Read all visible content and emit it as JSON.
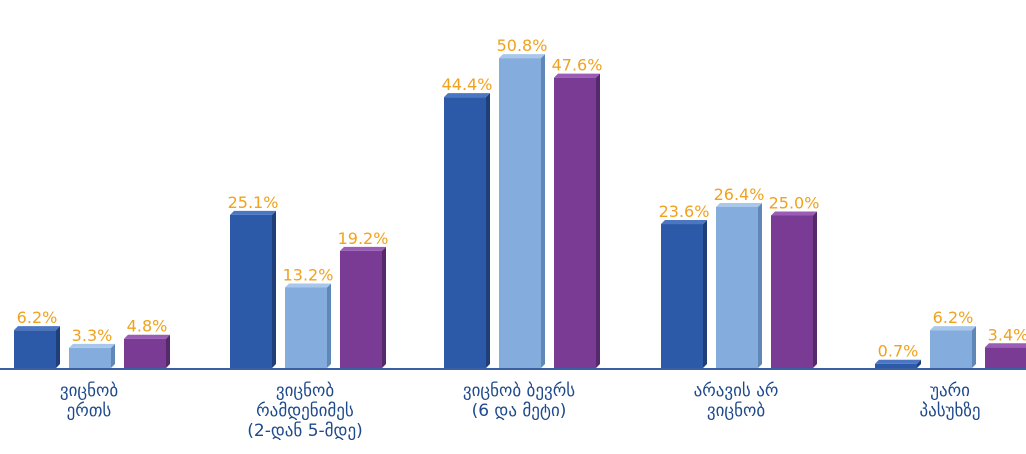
{
  "chart_data": {
    "type": "bar",
    "categories": [
      [
        "ვიცნობ",
        "ერთს"
      ],
      [
        "ვიცნობ",
        "რამდენიმეს",
        "(2-დან 5-მდე)"
      ],
      [
        "ვიცნობ ბევრს",
        "(6  და მეტი)"
      ],
      [
        "არავის არ",
        "ვიცნობ"
      ],
      [
        "უარი",
        "პასუხზე"
      ]
    ],
    "series": [
      {
        "values": [
          6.2,
          25.1,
          44.4,
          23.6,
          0.7
        ],
        "labels": [
          "6.2%",
          "25.1%",
          "44.4%",
          "23.6%",
          "0.7%"
        ]
      },
      {
        "values": [
          3.3,
          13.2,
          50.8,
          26.4,
          6.2
        ],
        "labels": [
          "3.3%",
          "13.2%",
          "50.8%",
          "26.4%",
          "6.2%"
        ]
      },
      {
        "values": [
          4.8,
          19.2,
          47.6,
          25.0,
          3.4
        ],
        "labels": [
          "4.8%",
          "19.2%",
          "47.6%",
          "25.0%",
          "3.4%"
        ]
      }
    ],
    "ylim": [
      0,
      55
    ],
    "grid": false,
    "legend": "none",
    "colors": {
      "series": [
        "#2d5aa8",
        "#84acdc",
        "#7a3b94"
      ],
      "series_side": [
        "#1e3f7a",
        "#5f87b8",
        "#55296a"
      ],
      "series_top": [
        "#4a76c2",
        "#a9c7ea",
        "#9a5cb4"
      ],
      "value_label": "#f0a21e",
      "category_label": "#1e4a8c",
      "axis": "#3a5fa5"
    }
  }
}
